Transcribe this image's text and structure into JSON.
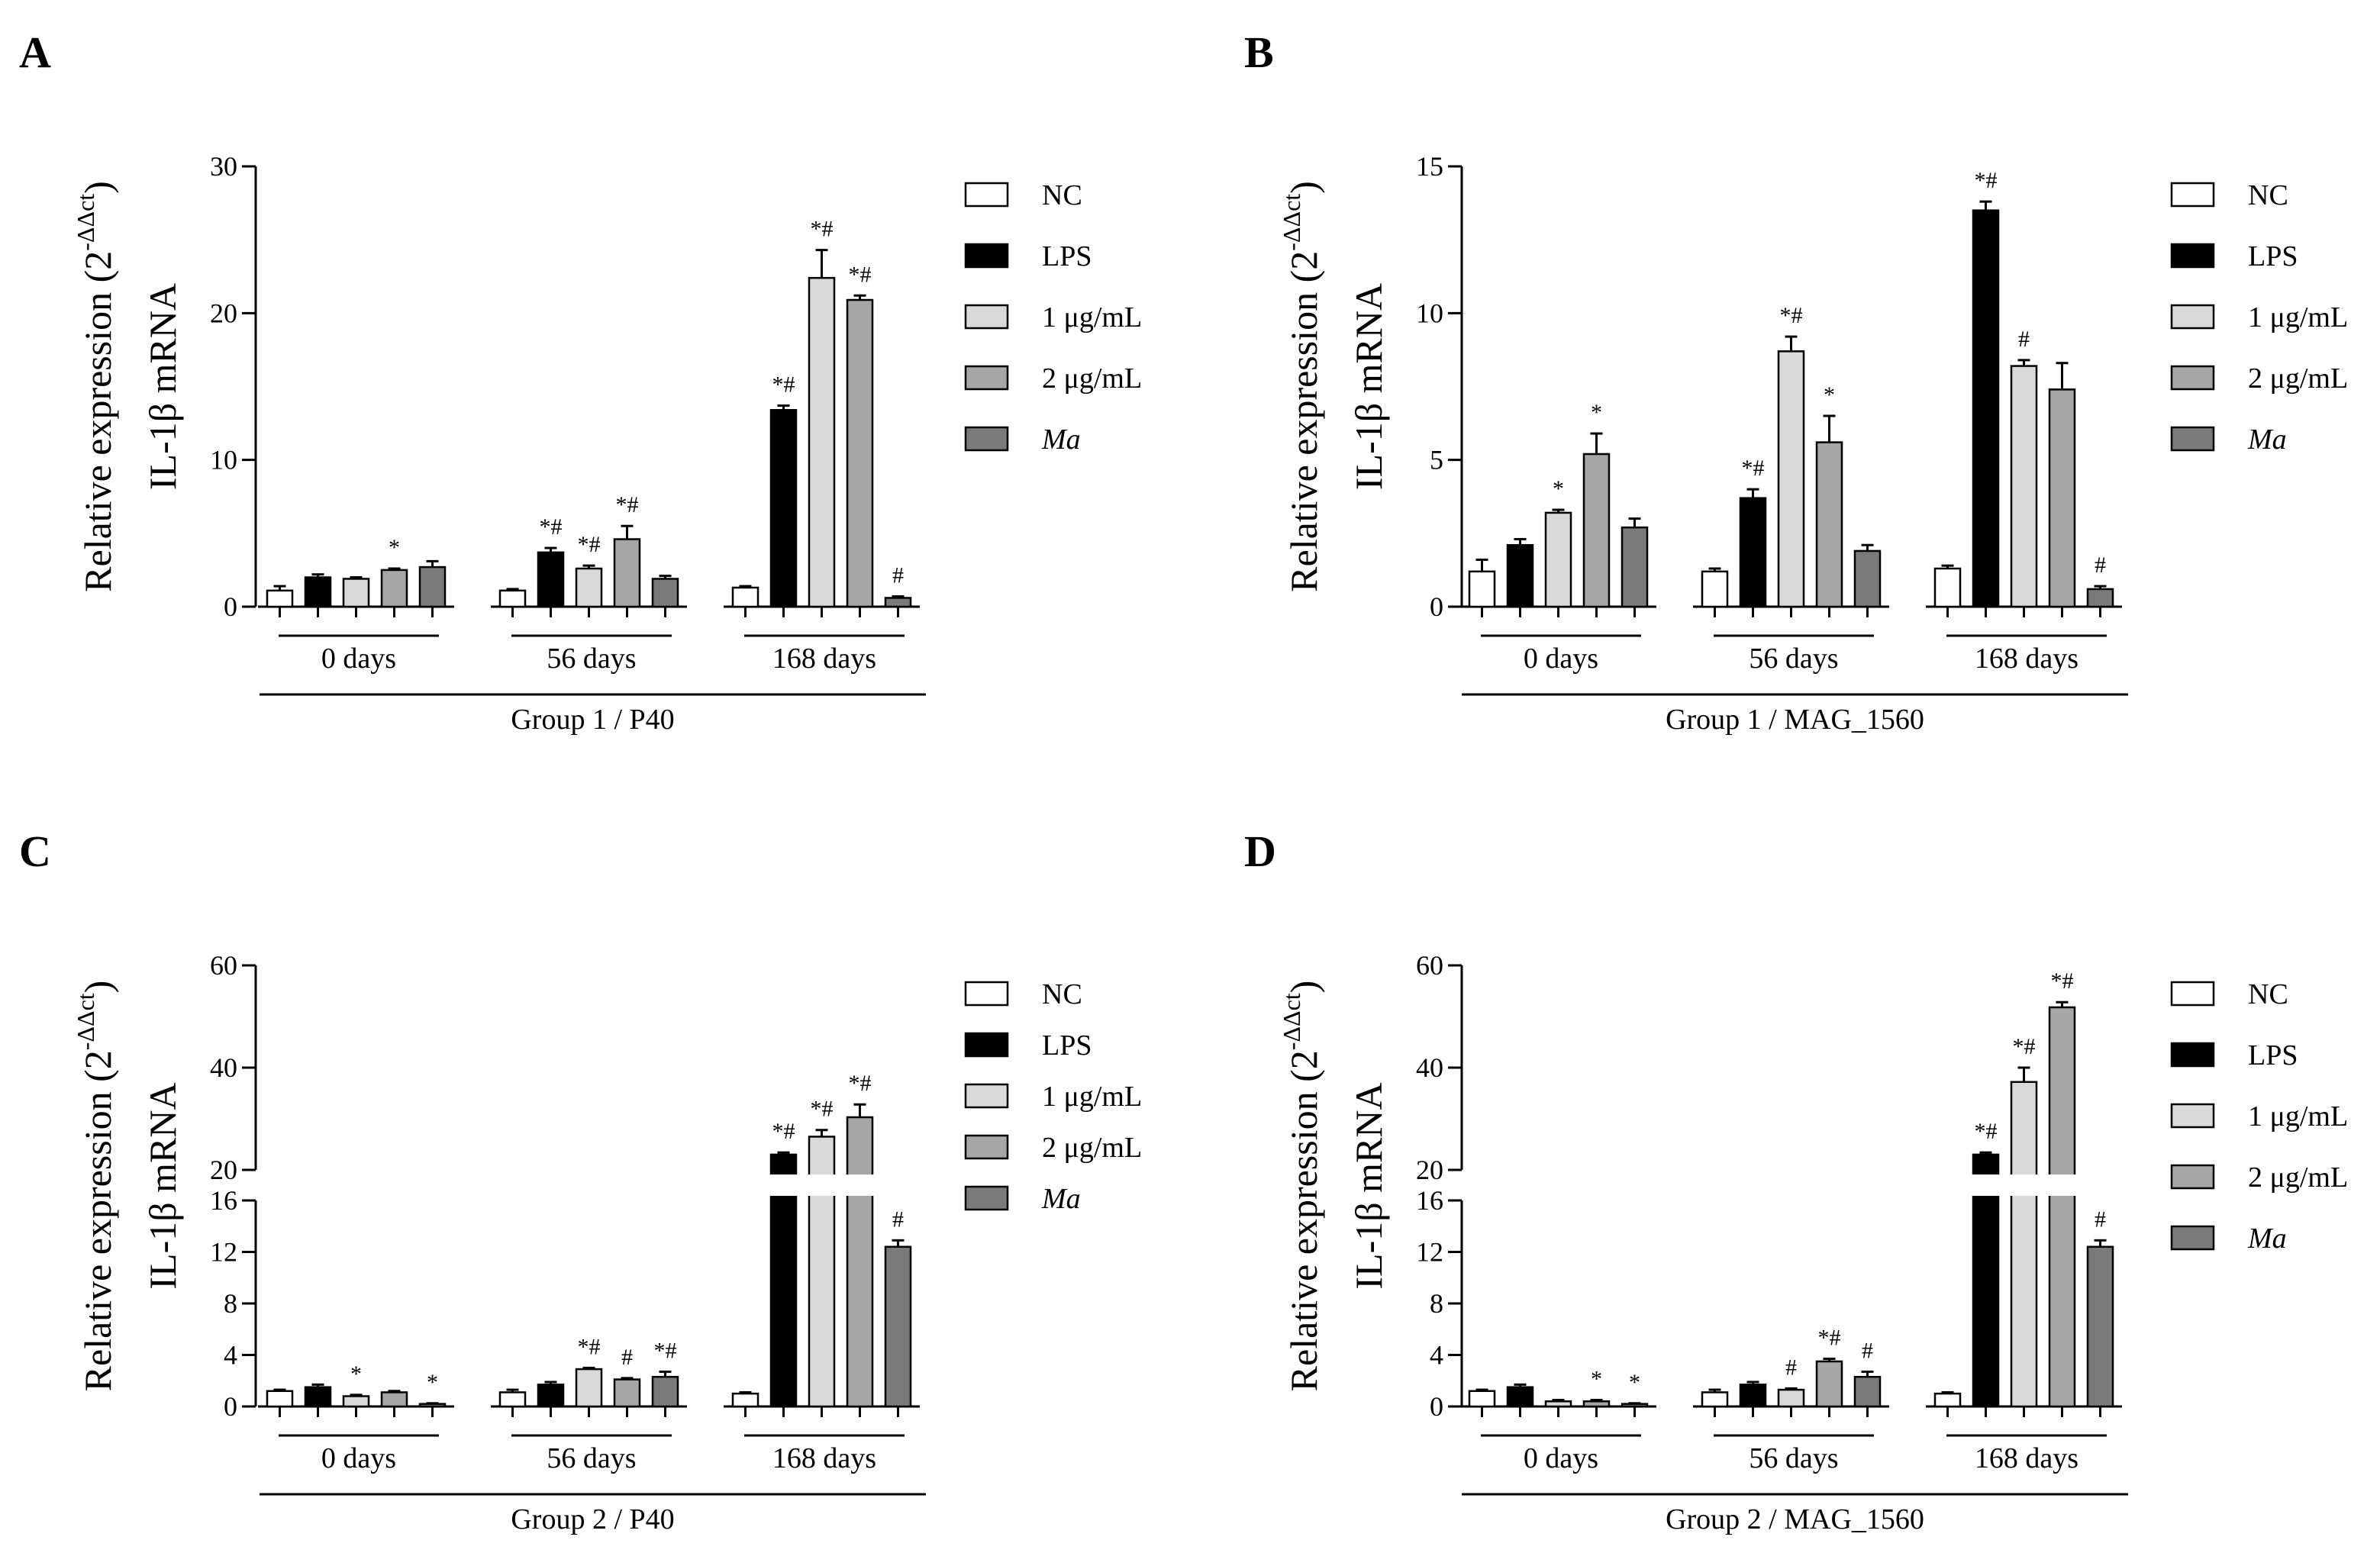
{
  "chart_data": [
    {
      "panel": "A",
      "type": "bar",
      "ylabel_line1": "IL-1β mRNA",
      "ylabel_line2_base": "Relative expression (2",
      "ylabel_line2_sup": "-ΔΔct",
      "ylabel_line2_close": ")",
      "ylim": [
        0,
        30
      ],
      "yticks": [
        "0",
        "10",
        "20",
        "30"
      ],
      "groups": [
        "0 days",
        "56 days",
        "168 days"
      ],
      "xlabel": "Group 1 / P40",
      "series": [
        {
          "name": "NC",
          "values": [
            1.1,
            1.1,
            1.3
          ],
          "errors": [
            0.3,
            0.1,
            0.1
          ],
          "sig": [
            "",
            "",
            ""
          ]
        },
        {
          "name": "LPS",
          "values": [
            2.0,
            3.7,
            13.4
          ],
          "errors": [
            0.2,
            0.3,
            0.3
          ],
          "sig": [
            "",
            "*#",
            "*#"
          ]
        },
        {
          "name": "1 μg/mL",
          "values": [
            1.9,
            2.6,
            22.4
          ],
          "errors": [
            0.1,
            0.2,
            1.9
          ],
          "sig": [
            "",
            "*#",
            "*#"
          ]
        },
        {
          "name": "2 μg/mL",
          "values": [
            2.5,
            4.6,
            20.9
          ],
          "errors": [
            0.1,
            0.9,
            0.3
          ],
          "sig": [
            "*",
            "*#",
            "*#"
          ]
        },
        {
          "name": "Ma",
          "values": [
            2.7,
            1.9,
            0.6
          ],
          "errors": [
            0.4,
            0.2,
            0.1
          ],
          "sig": [
            "",
            "",
            "#"
          ]
        }
      ]
    },
    {
      "panel": "B",
      "type": "bar",
      "ylabel_line1": "IL-1β mRNA",
      "ylabel_line2_base": "Relative expression (2",
      "ylabel_line2_sup": "-ΔΔct",
      "ylabel_line2_close": ")",
      "ylim": [
        0,
        15
      ],
      "yticks": [
        "0",
        "5",
        "10",
        "15"
      ],
      "groups": [
        "0 days",
        "56 days",
        "168 days"
      ],
      "xlabel": "Group 1 / MAG_1560",
      "series": [
        {
          "name": "NC",
          "values": [
            1.2,
            1.2,
            1.3
          ],
          "errors": [
            0.4,
            0.1,
            0.1
          ],
          "sig": [
            "",
            "",
            ""
          ]
        },
        {
          "name": "LPS",
          "values": [
            2.1,
            3.7,
            13.5
          ],
          "errors": [
            0.2,
            0.3,
            0.3
          ],
          "sig": [
            "",
            "*#",
            "*#"
          ]
        },
        {
          "name": "1 μg/mL",
          "values": [
            3.2,
            8.7,
            8.2
          ],
          "errors": [
            0.1,
            0.5,
            0.2
          ],
          "sig": [
            "*",
            "*#",
            "#"
          ]
        },
        {
          "name": "2 μg/mL",
          "values": [
            5.2,
            5.6,
            7.4
          ],
          "errors": [
            0.7,
            0.9,
            0.9
          ],
          "sig": [
            "*",
            "*",
            ""
          ]
        },
        {
          "name": "Ma",
          "values": [
            2.7,
            1.9,
            0.6
          ],
          "errors": [
            0.3,
            0.2,
            0.1
          ],
          "sig": [
            "",
            "",
            "#"
          ]
        }
      ]
    },
    {
      "panel": "C",
      "type": "bar",
      "broken_axis": true,
      "ylabel_line1": "IL-1β mRNA",
      "ylabel_line2_base": "Relative expression (2",
      "ylabel_line2_sup": "-ΔΔct",
      "ylabel_line2_close": ")",
      "lower_ylim": [
        0,
        16
      ],
      "upper_ylim": [
        20,
        60
      ],
      "lower_yticks": [
        "0",
        "4",
        "8",
        "12",
        "16"
      ],
      "upper_yticks": [
        "20",
        "40",
        "60"
      ],
      "groups": [
        "0 days",
        "56 days",
        "168 days"
      ],
      "xlabel": "Group 2 / P40",
      "series": [
        {
          "name": "NC",
          "values": [
            1.2,
            1.1,
            1.0
          ],
          "errors": [
            0.1,
            0.2,
            0.1
          ],
          "sig": [
            "",
            "",
            ""
          ]
        },
        {
          "name": "LPS",
          "values": [
            1.5,
            1.7,
            23.0
          ],
          "errors": [
            0.2,
            0.2,
            0.4
          ],
          "sig": [
            "",
            "",
            "*#"
          ]
        },
        {
          "name": "1 μg/mL",
          "values": [
            0.8,
            2.9,
            26.5
          ],
          "errors": [
            0.1,
            0.1,
            1.3
          ],
          "sig": [
            "*",
            "*#",
            "*#"
          ]
        },
        {
          "name": "2 μg/mL",
          "values": [
            1.1,
            2.1,
            30.3
          ],
          "errors": [
            0.1,
            0.1,
            2.5
          ],
          "sig": [
            "",
            "#",
            "*#"
          ]
        },
        {
          "name": "Ma",
          "values": [
            0.2,
            2.3,
            12.4
          ],
          "errors": [
            0.05,
            0.4,
            0.5
          ],
          "sig": [
            "*",
            "*#",
            "#"
          ]
        }
      ]
    },
    {
      "panel": "D",
      "type": "bar",
      "broken_axis": true,
      "ylabel_line1": "IL-1β mRNA",
      "ylabel_line2_base": "Relative expression (2",
      "ylabel_line2_sup": "-ΔΔct",
      "ylabel_line2_close": ")",
      "lower_ylim": [
        0,
        16
      ],
      "upper_ylim": [
        20,
        60
      ],
      "lower_yticks": [
        "0",
        "4",
        "8",
        "12",
        "16"
      ],
      "upper_yticks": [
        "20",
        "40",
        "60"
      ],
      "groups": [
        "0 days",
        "56 days",
        "168 days"
      ],
      "xlabel": "Group 2 / MAG_1560",
      "series": [
        {
          "name": "NC",
          "values": [
            1.2,
            1.1,
            1.0
          ],
          "errors": [
            0.1,
            0.2,
            0.1
          ],
          "sig": [
            "",
            "",
            ""
          ]
        },
        {
          "name": "LPS",
          "values": [
            1.5,
            1.7,
            23.0
          ],
          "errors": [
            0.2,
            0.2,
            0.4
          ],
          "sig": [
            "",
            "",
            "*#"
          ]
        },
        {
          "name": "1 μg/mL",
          "values": [
            0.4,
            1.3,
            37.2
          ],
          "errors": [
            0.1,
            0.1,
            2.8
          ],
          "sig": [
            "",
            "#",
            "*#"
          ]
        },
        {
          "name": "2 μg/mL",
          "values": [
            0.4,
            3.5,
            51.8
          ],
          "errors": [
            0.1,
            0.2,
            1.0
          ],
          "sig": [
            "*",
            "*#",
            "*#"
          ]
        },
        {
          "name": "Ma",
          "values": [
            0.2,
            2.3,
            12.4
          ],
          "errors": [
            0.05,
            0.4,
            0.5
          ],
          "sig": [
            "*",
            "#",
            "#"
          ]
        }
      ]
    }
  ],
  "legend": [
    "NC",
    "LPS",
    "1 μg/mL",
    "2 μg/mL",
    "Ma"
  ],
  "colors": [
    "#ffffff",
    "#000000",
    "#d9d9d9",
    "#a6a6a6",
    "#7a7a7a"
  ],
  "panel_letters": [
    "A",
    "B",
    "C",
    "D"
  ]
}
